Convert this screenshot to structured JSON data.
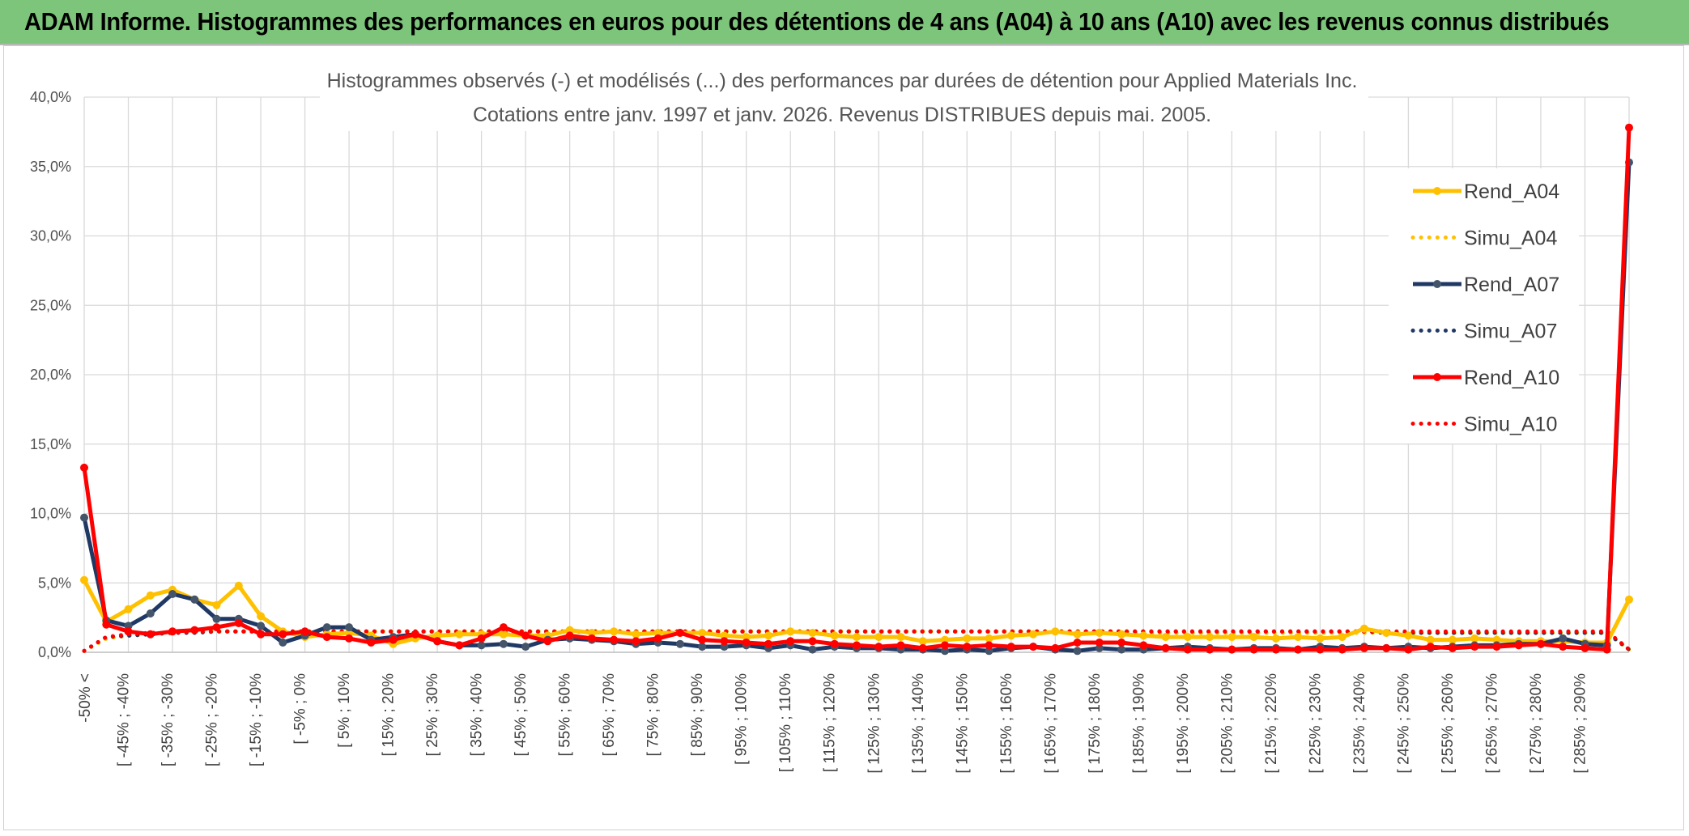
{
  "banner": {
    "title": "ADAM Informe. Histogrammes des performances en euros pour des détentions de 4 ans (A04) à 10 ans (A10) avec les revenus connus distribués"
  },
  "chart_data": {
    "type": "line",
    "title": "Histogrammes observés (-) et modélisés (...) des performances par durées de détention pour Applied Materials Inc.",
    "subtitle": "Cotations entre janv. 1997 et janv. 2026. Revenus DISTRIBUES depuis mai. 2005.",
    "xlabel": "",
    "ylabel": "",
    "ylim": [
      0,
      40
    ],
    "y_ticks": [
      "0,0%",
      "5,0%",
      "10,0%",
      "15,0%",
      "20,0%",
      "25,0%",
      "30,0%",
      "35,0%",
      "40,0%"
    ],
    "grid": true,
    "legend_position": "right",
    "categories": [
      "-50% <",
      "[ -50% ; -45%",
      "[ -45% ; -40%",
      "[ -40% ; -35%",
      "[ -35% ; -30%",
      "[ -30% ; -25%",
      "[ -25% ; -20%",
      "[ -20% ; -15%",
      "[ -15% ; -10%",
      "[ -10% ; -5%",
      "[ -5% ; 0%",
      "[ 0% ; 5%",
      "[ 5% ; 10%",
      "[ 10% ; 15%",
      "[ 15% ; 20%",
      "[ 20% ; 25%",
      "[ 25% ; 30%",
      "[ 30% ; 35%",
      "[ 35% ; 40%",
      "[ 40% ; 45%",
      "[ 45% ; 50%",
      "[ 50% ; 55%",
      "[ 55% ; 60%",
      "[ 60% ; 65%",
      "[ 65% ; 70%",
      "[ 70% ; 75%",
      "[ 75% ; 80%",
      "[ 80% ; 85%",
      "[ 85% ; 90%",
      "[ 90% ; 95%",
      "[ 95% ; 100%",
      "[ 100% ; 105%",
      "[ 105% ; 110%",
      "[ 110% ; 115%",
      "[ 115% ; 120%",
      "[ 120% ; 125%",
      "[ 125% ; 130%",
      "[ 130% ; 135%",
      "[ 135% ; 140%",
      "[ 140% ; 145%",
      "[ 145% ; 150%",
      "[ 150% ; 155%",
      "[ 155% ; 160%",
      "[ 160% ; 165%",
      "[ 165% ; 170%",
      "[ 170% ; 175%",
      "[ 175% ; 180%",
      "[ 180% ; 185%",
      "[ 185% ; 190%",
      "[ 190% ; 195%",
      "[ 195% ; 200%",
      "[ 200% ; 205%",
      "[ 205% ; 210%",
      "[ 210% ; 215%",
      "[ 215% ; 220%",
      "[ 220% ; 225%",
      "[ 225% ; 230%",
      "[ 230% ; 235%",
      "[ 235% ; 240%",
      "[ 240% ; 245%",
      "[ 245% ; 250%",
      "[ 250% ; 255%",
      "[ 255% ; 260%",
      "[ 260% ; 265%",
      "[ 265% ; 270%",
      "[ 270% ; 275%",
      "[ 275% ; 280%",
      "[ 280% ; 285%",
      "[ 285% ; 290%",
      "[ 290% ; 295%",
      "[ 295% ; 300%"
    ],
    "visible_tick_labels": [
      "-50% <",
      "[ -45% ; -40%",
      "[ -35% ; -30%",
      "[ -25% ; -20%",
      "[ -15% ; -10%",
      "[ -5% ; 0%",
      "[ 5% ; 10%",
      "[ 15% ; 20%",
      "[ 25% ; 30%",
      "[ 35% ; 40%",
      "[ 45% ; 50%",
      "[ 55% ; 60%",
      "[ 65% ; 70%",
      "[ 75% ; 80%",
      "[ 85% ; 90%",
      "[ 95% ; 100%",
      "[ 105% ; 110%",
      "[ 115% ; 120%",
      "[ 125% ; 130%",
      "[ 135% ; 140%",
      "[ 145% ; 150%",
      "[ 155% ; 160%",
      "[ 165% ; 170%",
      "[ 175% ; 180%",
      "[ 185% ; 190%",
      "[ 195% ; 200%",
      "[ 205% ; 210%",
      "[ 215% ; 220%",
      "[ 225% ; 230%",
      "[ 235% ; 240%",
      "[ 245% ; 250%",
      "[ 255% ; 260%",
      "[ 265% ; 270%",
      "[ 275% ; 280%",
      "[ 285% ; 290%"
    ],
    "series": [
      {
        "name": "Rend_A04",
        "color": "#ffc000",
        "style": "solid",
        "markers": true,
        "values": [
          5.2,
          2.2,
          3.1,
          4.1,
          4.5,
          3.8,
          3.4,
          4.8,
          2.6,
          1.5,
          1.1,
          1.3,
          1.4,
          1.2,
          0.6,
          1.0,
          1.2,
          1.3,
          1.3,
          1.3,
          1.2,
          1.2,
          1.6,
          1.4,
          1.5,
          1.3,
          1.4,
          1.4,
          1.4,
          1.2,
          1.1,
          1.2,
          1.5,
          1.4,
          1.2,
          1.1,
          1.1,
          1.1,
          0.8,
          0.9,
          1.0,
          1.0,
          1.2,
          1.3,
          1.5,
          1.3,
          1.4,
          1.3,
          1.2,
          1.1,
          1.1,
          1.1,
          1.1,
          1.1,
          1.0,
          1.1,
          1.0,
          1.1,
          1.7,
          1.4,
          1.2,
          0.9,
          0.9,
          1.0,
          0.9,
          0.8,
          0.8,
          0.8,
          0.7,
          0.7,
          3.8
        ]
      },
      {
        "name": "Simu_A04",
        "color": "#ffc000",
        "style": "dotted",
        "markers": false,
        "values": [
          0.1,
          1.0,
          1.2,
          1.3,
          1.4,
          1.5,
          1.5,
          1.5,
          1.5,
          1.5,
          1.5,
          1.5,
          1.5,
          1.5,
          1.5,
          1.5,
          1.5,
          1.5,
          1.5,
          1.5,
          1.5,
          1.5,
          1.5,
          1.5,
          1.5,
          1.5,
          1.5,
          1.5,
          1.5,
          1.5,
          1.5,
          1.5,
          1.5,
          1.5,
          1.5,
          1.5,
          1.5,
          1.5,
          1.5,
          1.5,
          1.5,
          1.5,
          1.5,
          1.5,
          1.5,
          1.5,
          1.5,
          1.5,
          1.4,
          1.4,
          1.4,
          1.4,
          1.4,
          1.4,
          1.4,
          1.4,
          1.4,
          1.4,
          1.4,
          1.4,
          1.4,
          1.4,
          1.4,
          1.4,
          1.4,
          1.4,
          1.4,
          1.4,
          1.4,
          1.4,
          0.2
        ]
      },
      {
        "name": "Rend_A07",
        "color": "#1f3864",
        "style": "solid",
        "markers": true,
        "values": [
          9.7,
          2.3,
          1.9,
          2.8,
          4.2,
          3.8,
          2.4,
          2.4,
          1.9,
          0.7,
          1.2,
          1.8,
          1.8,
          0.9,
          1.1,
          1.3,
          0.8,
          0.5,
          0.5,
          0.6,
          0.4,
          0.9,
          1.0,
          0.9,
          0.8,
          0.6,
          0.7,
          0.6,
          0.4,
          0.4,
          0.5,
          0.3,
          0.5,
          0.2,
          0.4,
          0.3,
          0.3,
          0.2,
          0.2,
          0.1,
          0.2,
          0.1,
          0.3,
          0.4,
          0.2,
          0.1,
          0.3,
          0.2,
          0.2,
          0.3,
          0.4,
          0.3,
          0.2,
          0.3,
          0.3,
          0.2,
          0.4,
          0.3,
          0.4,
          0.3,
          0.4,
          0.3,
          0.4,
          0.5,
          0.5,
          0.6,
          0.6,
          1.0,
          0.6,
          0.5,
          35.3
        ]
      },
      {
        "name": "Simu_A07",
        "color": "#1f3864",
        "style": "dotted",
        "markers": false,
        "values": [
          0.1,
          1.1,
          1.2,
          1.3,
          1.4,
          1.4,
          1.5,
          1.5,
          1.5,
          1.5,
          1.5,
          1.5,
          1.5,
          1.5,
          1.5,
          1.5,
          1.5,
          1.5,
          1.5,
          1.5,
          1.5,
          1.5,
          1.5,
          1.5,
          1.5,
          1.5,
          1.5,
          1.5,
          1.5,
          1.5,
          1.5,
          1.5,
          1.5,
          1.5,
          1.5,
          1.5,
          1.5,
          1.5,
          1.5,
          1.5,
          1.5,
          1.5,
          1.5,
          1.5,
          1.5,
          1.5,
          1.5,
          1.5,
          1.5,
          1.5,
          1.5,
          1.5,
          1.5,
          1.5,
          1.5,
          1.5,
          1.5,
          1.5,
          1.5,
          1.4,
          1.4,
          1.4,
          1.4,
          1.4,
          1.4,
          1.4,
          1.4,
          1.4,
          1.4,
          1.4,
          0.2
        ]
      },
      {
        "name": "Rend_A10",
        "color": "#ff0000",
        "style": "solid",
        "markers": true,
        "values": [
          13.3,
          2.0,
          1.5,
          1.3,
          1.5,
          1.6,
          1.8,
          2.1,
          1.3,
          1.3,
          1.5,
          1.1,
          1.0,
          0.7,
          0.9,
          1.3,
          0.8,
          0.5,
          1.0,
          1.8,
          1.2,
          0.8,
          1.2,
          1.0,
          0.9,
          0.8,
          1.0,
          1.4,
          0.9,
          0.8,
          0.7,
          0.6,
          0.8,
          0.8,
          0.6,
          0.5,
          0.4,
          0.5,
          0.3,
          0.5,
          0.4,
          0.5,
          0.4,
          0.4,
          0.3,
          0.7,
          0.7,
          0.7,
          0.5,
          0.3,
          0.2,
          0.2,
          0.2,
          0.2,
          0.2,
          0.2,
          0.2,
          0.2,
          0.3,
          0.3,
          0.2,
          0.4,
          0.3,
          0.4,
          0.4,
          0.5,
          0.6,
          0.4,
          0.3,
          0.2,
          37.8
        ]
      },
      {
        "name": "Simu_A10",
        "color": "#ff0000",
        "style": "dotted",
        "markers": false,
        "values": [
          0.1,
          1.1,
          1.3,
          1.4,
          1.4,
          1.5,
          1.5,
          1.5,
          1.5,
          1.5,
          1.5,
          1.5,
          1.5,
          1.5,
          1.5,
          1.5,
          1.5,
          1.5,
          1.5,
          1.5,
          1.5,
          1.5,
          1.5,
          1.5,
          1.5,
          1.5,
          1.5,
          1.5,
          1.5,
          1.5,
          1.5,
          1.5,
          1.5,
          1.5,
          1.5,
          1.5,
          1.5,
          1.5,
          1.5,
          1.5,
          1.5,
          1.5,
          1.5,
          1.5,
          1.5,
          1.5,
          1.5,
          1.5,
          1.5,
          1.5,
          1.5,
          1.5,
          1.5,
          1.5,
          1.5,
          1.5,
          1.5,
          1.5,
          1.5,
          1.5,
          1.5,
          1.5,
          1.5,
          1.5,
          1.5,
          1.5,
          1.5,
          1.5,
          1.5,
          1.5,
          0.2
        ]
      }
    ]
  }
}
